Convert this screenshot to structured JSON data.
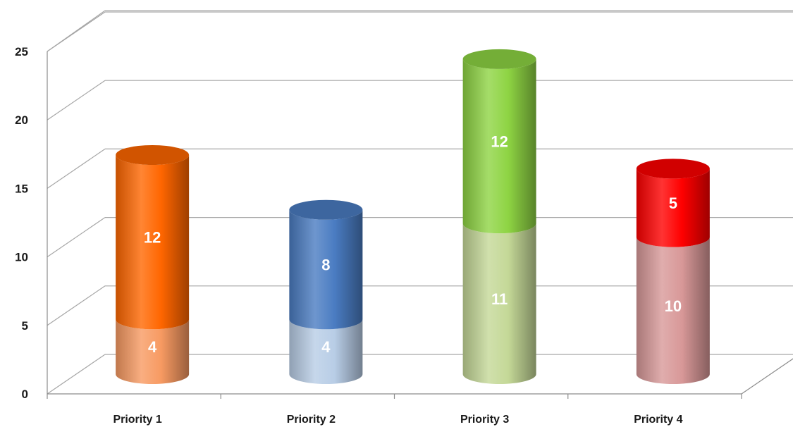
{
  "chart_data": {
    "type": "bar",
    "stacked": true,
    "style": "3d-cylinder",
    "categories": [
      "Priority 1",
      "Priority 2",
      "Priority 3",
      "Priority 4"
    ],
    "series": [
      {
        "values": [
          4,
          4,
          11,
          10
        ]
      },
      {
        "values": [
          12,
          8,
          12,
          5
        ]
      }
    ],
    "segment_colors": [
      {
        "bottom": "#f79a62",
        "top": "#ff6600"
      },
      {
        "bottom": "#b8cde6",
        "top": "#4a7cc2"
      },
      {
        "bottom": "#c4d897",
        "top": "#8ed443"
      },
      {
        "bottom": "#d89898",
        "top": "#ff0000"
      }
    ],
    "yticks": [
      "0",
      "5",
      "10",
      "15",
      "20",
      "25"
    ],
    "ylim": [
      0,
      25
    ],
    "grid": true,
    "title": "",
    "xlabel": "",
    "ylabel": ""
  }
}
